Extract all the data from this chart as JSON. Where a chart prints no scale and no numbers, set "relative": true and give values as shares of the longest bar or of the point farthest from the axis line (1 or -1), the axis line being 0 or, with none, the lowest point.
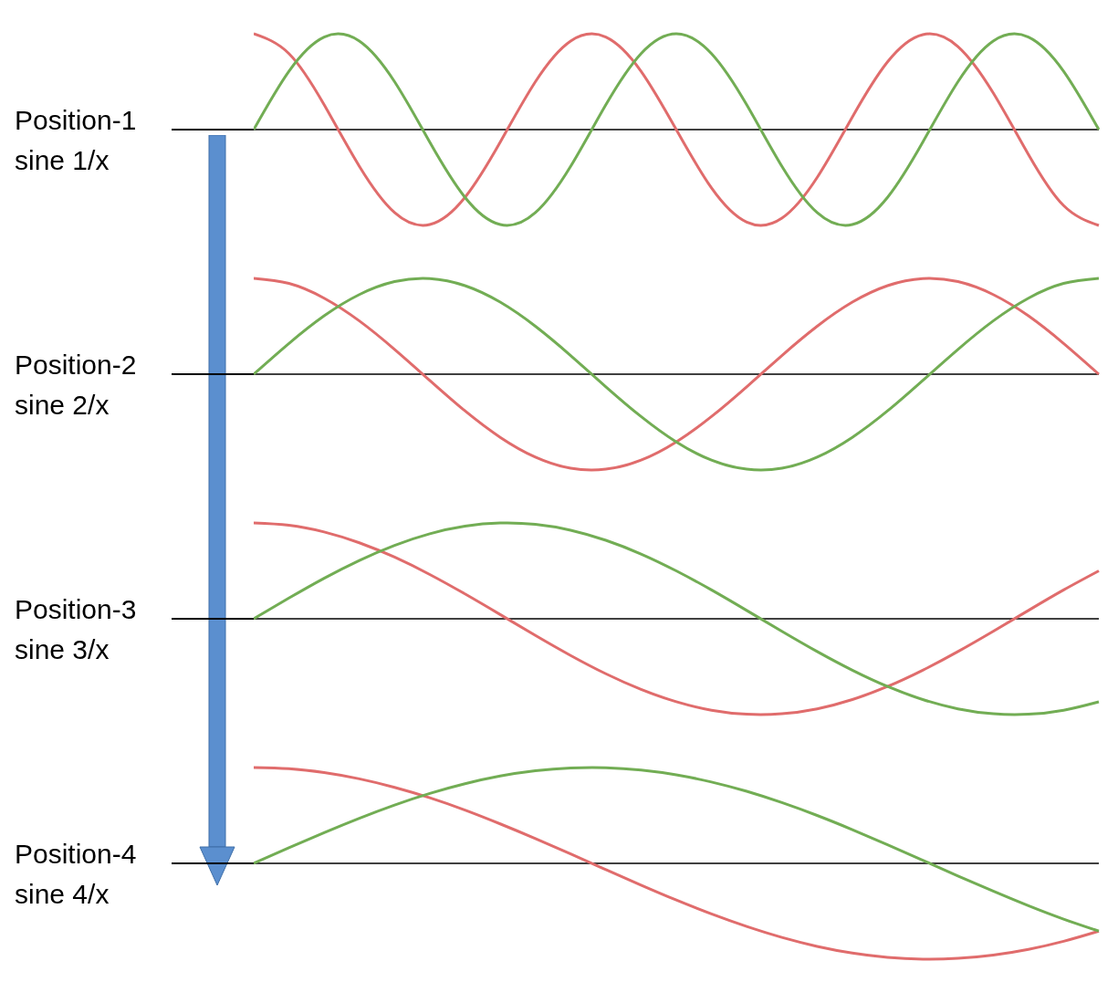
{
  "chart_data": [
    {
      "type": "line",
      "relative": true,
      "title": "Position-1",
      "subtitle": "sine 1/x",
      "categories": [
        null,
        null,
        null,
        null,
        null,
        null,
        null,
        null,
        null,
        null,
        null,
        null,
        null,
        null,
        null,
        null,
        null,
        null,
        null,
        null,
        null,
        null,
        null,
        null,
        null
      ],
      "series": [
        {
          "color": "#e06c6c",
          "values": [
            1,
            0.793,
            0.259,
            -0.383,
            -0.866,
            -0.991,
            -0.707,
            -0.131,
            0.5,
            0.924,
            0.966,
            0.609,
            0,
            -0.609,
            -0.966,
            -0.924,
            -0.5,
            0.131,
            0.707,
            0.991,
            0.866,
            0.383,
            -0.259,
            -0.793,
            -1
          ]
        },
        {
          "color": "#72ad54",
          "values": [
            0,
            0.609,
            0.966,
            0.924,
            0.5,
            -0.131,
            -0.707,
            -0.991,
            -0.866,
            -0.383,
            0.259,
            0.793,
            1,
            0.793,
            0.259,
            -0.383,
            -0.866,
            -0.991,
            -0.707,
            -0.131,
            0.5,
            0.924,
            0.966,
            0.609,
            0
          ]
        }
      ]
    },
    {
      "type": "line",
      "relative": true,
      "title": "Position-2",
      "subtitle": "sine 2/x",
      "categories": [
        null,
        null,
        null,
        null,
        null,
        null,
        null,
        null,
        null,
        null,
        null,
        null,
        null,
        null,
        null,
        null,
        null,
        null,
        null,
        null,
        null,
        null,
        null,
        null,
        null
      ],
      "series": [
        {
          "color": "#e06c6c",
          "values": [
            1,
            0.947,
            0.793,
            0.556,
            0.259,
            -0.065,
            -0.383,
            -0.659,
            -0.866,
            -0.981,
            -0.991,
            -0.897,
            -0.707,
            -0.442,
            -0.131,
            0.195,
            0.5,
            0.752,
            0.924,
            0.998,
            0.966,
            0.831,
            0.609,
            0.321,
            0
          ]
        },
        {
          "color": "#72ad54",
          "values": [
            0,
            0.321,
            0.609,
            0.831,
            0.966,
            0.998,
            0.924,
            0.752,
            0.5,
            0.195,
            -0.131,
            -0.442,
            -0.707,
            -0.897,
            -0.991,
            -0.981,
            -0.866,
            -0.659,
            -0.383,
            -0.065,
            0.259,
            0.556,
            0.793,
            0.947,
            1
          ]
        }
      ]
    },
    {
      "type": "line",
      "relative": true,
      "title": "Position-3",
      "subtitle": "sine 3/x",
      "categories": [
        null,
        null,
        null,
        null,
        null,
        null,
        null,
        null,
        null,
        null,
        null,
        null,
        null,
        null,
        null,
        null,
        null,
        null,
        null,
        null,
        null,
        null,
        null,
        null,
        null
      ],
      "series": [
        {
          "color": "#e06c6c",
          "values": [
            1,
            0.976,
            0.906,
            0.793,
            0.643,
            0.462,
            0.259,
            0.044,
            -0.174,
            -0.383,
            -0.574,
            -0.737,
            -0.866,
            -0.954,
            -0.996,
            -0.991,
            -0.94,
            -0.843,
            -0.707,
            -0.537,
            -0.342,
            -0.131,
            0.087,
            0.301,
            0.5
          ]
        },
        {
          "color": "#72ad54",
          "values": [
            0,
            0.216,
            0.423,
            0.609,
            0.766,
            0.887,
            0.966,
            0.999,
            0.985,
            0.924,
            0.819,
            0.676,
            0.5,
            0.301,
            0.087,
            -0.131,
            -0.342,
            -0.537,
            -0.707,
            -0.843,
            -0.94,
            -0.991,
            -0.996,
            -0.954,
            -0.866
          ]
        }
      ]
    },
    {
      "type": "line",
      "relative": true,
      "title": "Position-4",
      "subtitle": "sine 4/x",
      "categories": [
        null,
        null,
        null,
        null,
        null,
        null,
        null,
        null,
        null,
        null,
        null,
        null,
        null,
        null,
        null,
        null,
        null,
        null,
        null,
        null,
        null,
        null,
        null,
        null,
        null
      ],
      "series": [
        {
          "color": "#e06c6c",
          "values": [
            1,
            0.987,
            0.947,
            0.882,
            0.793,
            0.684,
            0.556,
            0.412,
            0.259,
            0.098,
            -0.065,
            -0.227,
            -0.383,
            -0.528,
            -0.659,
            -0.773,
            -0.866,
            -0.936,
            -0.981,
            -0.999,
            -0.991,
            -0.957,
            -0.897,
            -0.813,
            -0.707
          ]
        },
        {
          "color": "#72ad54",
          "values": [
            0,
            0.163,
            0.321,
            0.471,
            0.609,
            0.73,
            0.831,
            0.911,
            0.966,
            0.995,
            0.998,
            0.974,
            0.924,
            0.849,
            0.752,
            0.634,
            0.5,
            0.352,
            0.195,
            0.033,
            -0.131,
            -0.29,
            -0.442,
            -0.582,
            -0.707
          ]
        }
      ]
    }
  ]
}
